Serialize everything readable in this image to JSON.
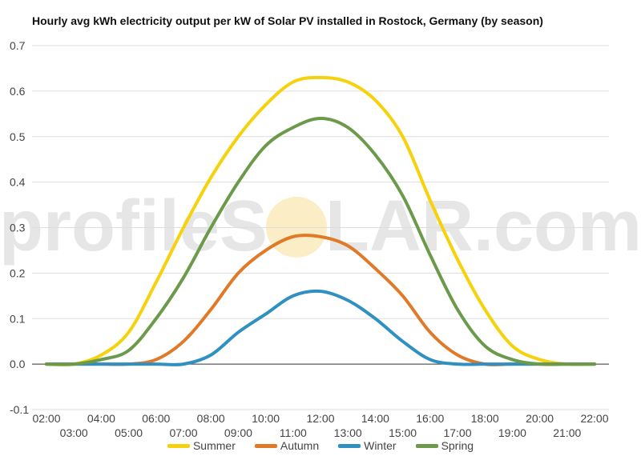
{
  "chart_data": {
    "type": "line",
    "title": "Hourly avg kWh electricity output per kW of Solar PV installed in Rostock, Germany (by season)",
    "xlabel": "",
    "ylabel": "",
    "ylim": [
      -0.1,
      0.7
    ],
    "yticks": [
      -0.1,
      0.0,
      0.1,
      0.2,
      0.3,
      0.4,
      0.5,
      0.6,
      0.7
    ],
    "ytick_labels": [
      "-0.1",
      "0.0",
      "0.1",
      "0.2",
      "0.3",
      "0.4",
      "0.5",
      "0.6",
      "0.7"
    ],
    "x": [
      "02:00",
      "03:00",
      "04:00",
      "05:00",
      "06:00",
      "07:00",
      "08:00",
      "09:00",
      "10:00",
      "11:00",
      "12:00",
      "13:00",
      "14:00",
      "15:00",
      "16:00",
      "17:00",
      "18:00",
      "19:00",
      "20:00",
      "21:00",
      "22:00"
    ],
    "grid": true,
    "legend_position": "bottom",
    "series": [
      {
        "name": "Summer",
        "color": "#f5d20b",
        "values": [
          0.0,
          0.0,
          0.02,
          0.07,
          0.18,
          0.3,
          0.41,
          0.5,
          0.57,
          0.62,
          0.63,
          0.62,
          0.58,
          0.5,
          0.36,
          0.23,
          0.12,
          0.04,
          0.01,
          0.0,
          0.0
        ]
      },
      {
        "name": "Autumn",
        "color": "#e07a28",
        "values": [
          0.0,
          0.0,
          0.0,
          0.0,
          0.01,
          0.05,
          0.12,
          0.2,
          0.25,
          0.28,
          0.28,
          0.26,
          0.21,
          0.15,
          0.07,
          0.02,
          0.0,
          0.0,
          0.0,
          0.0,
          0.0
        ]
      },
      {
        "name": "Winter",
        "color": "#2f90c1",
        "values": [
          0.0,
          0.0,
          0.0,
          0.0,
          0.0,
          0.0,
          0.02,
          0.07,
          0.11,
          0.15,
          0.16,
          0.14,
          0.1,
          0.05,
          0.01,
          0.0,
          0.0,
          0.0,
          0.0,
          0.0,
          0.0
        ]
      },
      {
        "name": "Spring",
        "color": "#6b9a4a",
        "values": [
          0.0,
          0.0,
          0.01,
          0.03,
          0.1,
          0.19,
          0.3,
          0.4,
          0.48,
          0.52,
          0.54,
          0.52,
          0.46,
          0.37,
          0.24,
          0.12,
          0.04,
          0.01,
          0.0,
          0.0,
          0.0
        ]
      }
    ]
  },
  "watermark": {
    "text_left": "profileS",
    "text_right": "LAR.com",
    "sun_color": "#f8e3a0"
  }
}
